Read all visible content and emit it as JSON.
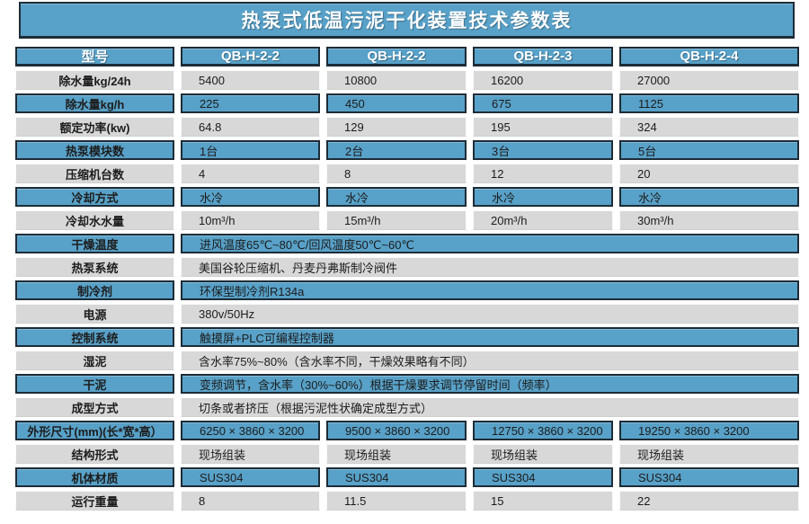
{
  "title": "热泵式低温污泥干化装置技术参数表",
  "colors": {
    "accent_blue": "#58a1c8",
    "dark_border": "#1d2c37",
    "row_gray": "#d8d8d8",
    "header_text": "#ffffff",
    "body_text": "#1c1c1c"
  },
  "table": {
    "header": [
      "型号",
      "QB-H-2-2",
      "QB-H-2-2",
      "QB-H-2-3",
      "QB-H-2-4"
    ],
    "rows": [
      {
        "label": "除水量kg/24h",
        "variant": "gray",
        "values": [
          "5400",
          "10800",
          "16200",
          "27000"
        ]
      },
      {
        "label": "除水量kg/h",
        "variant": "blue",
        "values": [
          "225",
          "450",
          "675",
          "1125"
        ]
      },
      {
        "label": "额定功率(kw)",
        "variant": "gray",
        "values": [
          "64.8",
          "129",
          "195",
          "324"
        ]
      },
      {
        "label": "热泵模块数",
        "variant": "blue",
        "values": [
          "1台",
          "2台",
          "3台",
          "5台"
        ]
      },
      {
        "label": "压缩机台数",
        "variant": "gray",
        "values": [
          "4",
          "8",
          "12",
          "20"
        ]
      },
      {
        "label": "冷却方式",
        "variant": "blue",
        "values": [
          "水冷",
          "水冷",
          "水冷",
          "水冷"
        ]
      },
      {
        "label": "冷却水水量",
        "variant": "gray",
        "values": [
          "10m³/h",
          "15m³/h",
          "20m³/h",
          "30m³/h"
        ]
      },
      {
        "label": "干燥温度",
        "variant": "blue",
        "span": "进风温度65℃~80℃/回风温度50℃~60℃"
      },
      {
        "label": "热泵系统",
        "variant": "gray",
        "span": "美国谷轮压缩机、丹麦丹弗斯制冷阀件"
      },
      {
        "label": "制冷剂",
        "variant": "blue",
        "span": "环保型制冷剂R134a"
      },
      {
        "label": "电源",
        "variant": "gray",
        "span": "380v/50Hz"
      },
      {
        "label": "控制系统",
        "variant": "blue",
        "span": "触摸屏+PLC可编程控制器"
      },
      {
        "label": "湿泥",
        "variant": "gray",
        "span": "含水率75%~80%（含水率不同，干燥效果略有不同）"
      },
      {
        "label": "干泥",
        "variant": "blue",
        "span": "变频调节，含水率（30%~60%）根据干燥要求调节停留时间（频率）"
      },
      {
        "label": "成型方式",
        "variant": "gray",
        "span": "切条或者挤压（根据污泥性状确定成型方式）"
      },
      {
        "label": "外形尺寸(mm)(长*宽*高）",
        "variant": "blue",
        "values": [
          "6250 × 3860 × 3200",
          "9500 × 3860 × 3200",
          "12750 × 3860 × 3200",
          "19250 × 3860 × 3200"
        ]
      },
      {
        "label": "结构形式",
        "variant": "gray",
        "values": [
          "现场组装",
          "现场组装",
          "现场组装",
          "现场组装"
        ]
      },
      {
        "label": "机体材质",
        "variant": "blue",
        "values": [
          "SUS304",
          "SUS304",
          "SUS304",
          "SUS304"
        ]
      },
      {
        "label": "运行重量",
        "variant": "gray",
        "values": [
          "8",
          "11.5",
          "15",
          "22"
        ]
      }
    ]
  }
}
